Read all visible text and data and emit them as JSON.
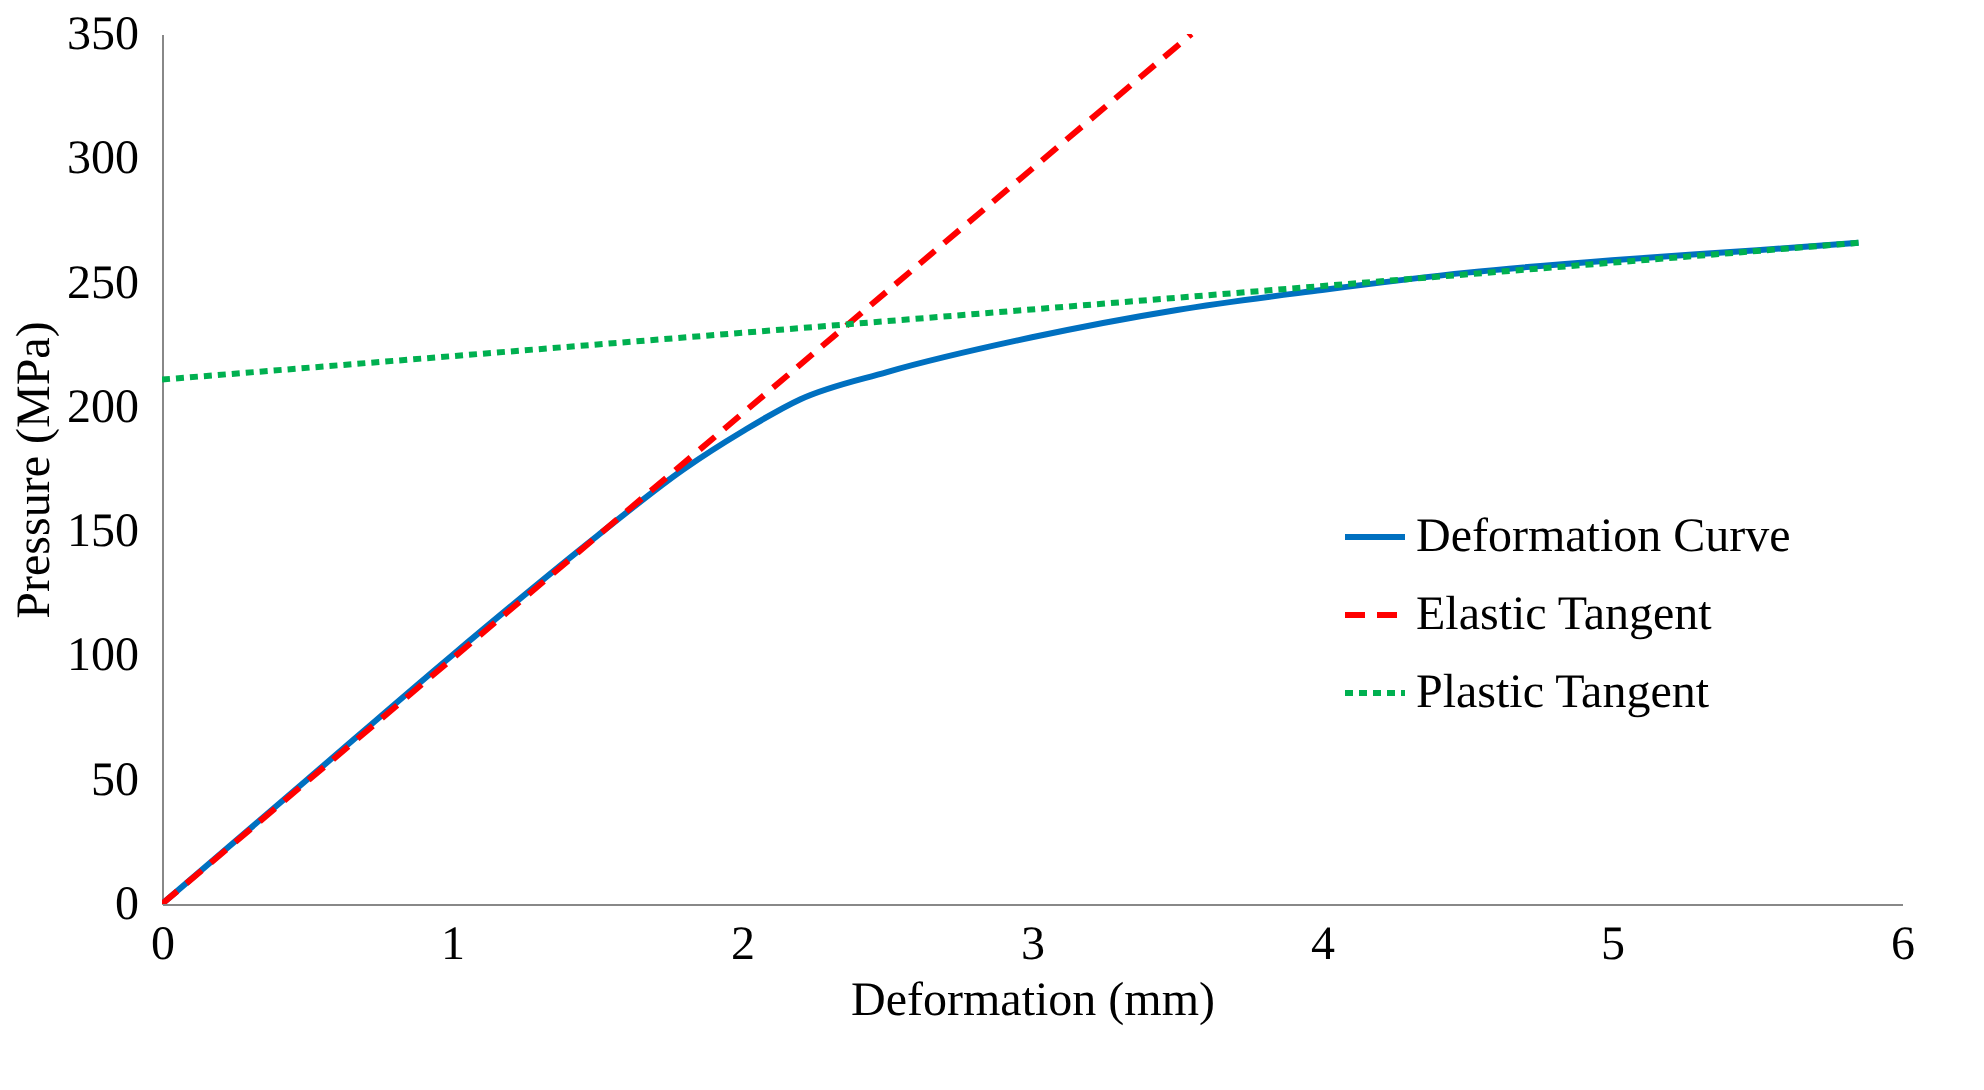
{
  "chart_data": {
    "type": "line",
    "xlabel": "Deformation (mm)",
    "ylabel": "Pressure (MPa)",
    "xlim": [
      0,
      6
    ],
    "xticks": [
      0,
      1,
      2,
      3,
      4,
      5,
      6
    ],
    "ylim": [
      0,
      350
    ],
    "yticks": [
      0,
      50,
      100,
      150,
      200,
      250,
      300,
      350
    ],
    "grid": false,
    "legend": "right",
    "marker": "none",
    "series": [
      {
        "name": "Deformation Curve",
        "color": "#0070c0",
        "line_style": "solid",
        "x": [
          0,
          0.5,
          1,
          1.5,
          1.8,
          2,
          2.2,
          2.5,
          3,
          3.5,
          4,
          4.5,
          5,
          5.5,
          5.85
        ],
        "values": [
          0,
          50,
          100,
          148,
          175,
          190,
          203,
          214,
          228,
          239,
          247,
          254,
          259,
          263,
          266
        ]
      },
      {
        "name": "Elastic Tangent",
        "color": "#ff0000",
        "line_style": "dashed",
        "x": [
          0,
          3.55
        ],
        "values": [
          0,
          350
        ]
      },
      {
        "name": "Plastic Tangent",
        "color": "#00b050",
        "line_style": "dotted",
        "x": [
          0,
          5.85
        ],
        "values": [
          211,
          266
        ]
      }
    ]
  }
}
